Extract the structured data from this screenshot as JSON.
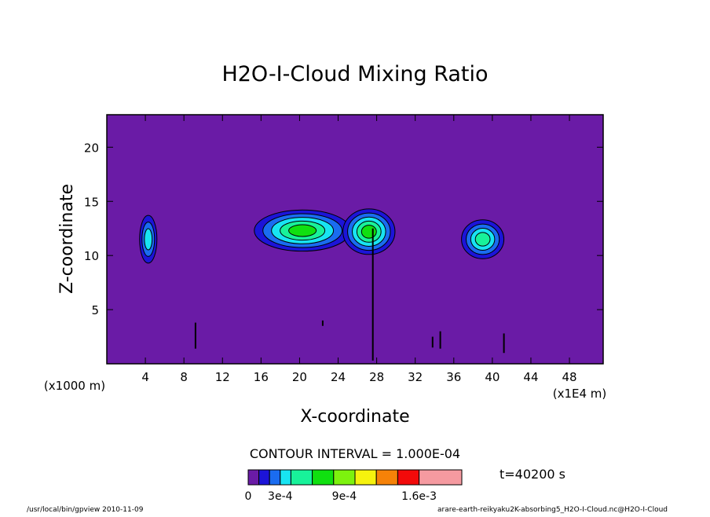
{
  "chart_data": {
    "type": "heatmap",
    "title": "H2O-I-Cloud Mixing Ratio",
    "xlabel": "X-coordinate",
    "ylabel": "Z-coordinate",
    "x_units": "(x1E4 m)",
    "y_units": "(x1000 m)",
    "xlim": [
      0,
      51.5
    ],
    "ylim": [
      0,
      23
    ],
    "x_ticks": [
      4,
      8,
      12,
      16,
      20,
      24,
      28,
      32,
      36,
      40,
      44,
      48
    ],
    "y_ticks": [
      5,
      10,
      15,
      20
    ],
    "contour_interval_text": "CONTOUR INTERVAL = 1.000E-04",
    "time_label": "t=40200 s",
    "colorbar_labels": [
      "0",
      "3e-4",
      "9e-4",
      "1.6e-3"
    ],
    "colorbar_levels": [
      0,
      0.0001,
      0.0002,
      0.0003,
      0.0004,
      0.0006,
      0.0008,
      0.001,
      0.0012,
      0.0014,
      0.0016,
      0.002
    ],
    "colorbar_colors": [
      "#6a1ba6",
      "#1c14d8",
      "#1a6cf0",
      "#18e4f2",
      "#18f29a",
      "#10e010",
      "#7df20e",
      "#f6f20e",
      "#f68208",
      "#f20a0a",
      "#f59aa0"
    ],
    "background_color": "#6a1ba6",
    "clouds": [
      {
        "name": "cloud-x4",
        "x": 4.3,
        "z": 11.5,
        "rx": 0.9,
        "rz": 2.2,
        "peak_level": 3
      },
      {
        "name": "cloud-x20",
        "x": 20.3,
        "z": 12.3,
        "rx": 5.0,
        "rz": 1.9,
        "peak_level": 5
      },
      {
        "name": "cloud-x27",
        "x": 27.2,
        "z": 12.2,
        "rx": 2.7,
        "rz": 2.1,
        "peak_level": 5
      },
      {
        "name": "cloud-x39",
        "x": 39.0,
        "z": 11.5,
        "rx": 2.2,
        "rz": 1.8,
        "peak_level": 4
      }
    ],
    "streaks": [
      {
        "x": 27.6,
        "z0": 0.3,
        "z1": 12.5
      },
      {
        "x": 9.2,
        "z0": 1.4,
        "z1": 3.8
      },
      {
        "x": 22.4,
        "z0": 3.5,
        "z1": 4.0
      },
      {
        "x": 33.8,
        "z0": 1.5,
        "z1": 2.5
      },
      {
        "x": 34.6,
        "z0": 1.4,
        "z1": 3.0
      },
      {
        "x": 41.2,
        "z0": 1.0,
        "z1": 2.8
      }
    ]
  },
  "footer": {
    "left": "/usr/local/bin/gpview   2010-11-09",
    "right": "arare-earth-reikyaku2K-absorbing5_H2O-I-Cloud.nc@H2O-I-Cloud"
  }
}
